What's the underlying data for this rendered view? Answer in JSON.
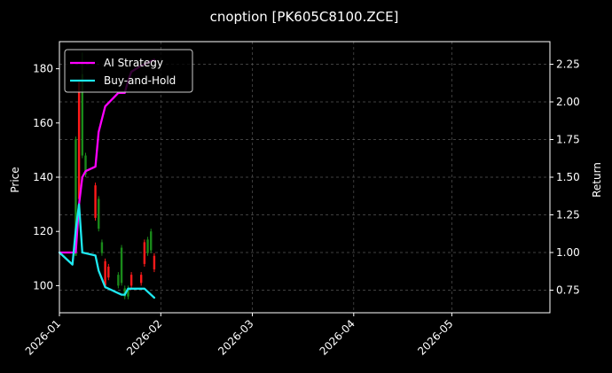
{
  "chart_data": {
    "type": "line",
    "title": "cnoption [PK605C8100.ZCE]",
    "xlabel": "",
    "ylabel": "Price",
    "y2label": "Return",
    "x_ticks": [
      "2026-01",
      "2026-02",
      "2026-03",
      "2026-04",
      "2026-05"
    ],
    "x_range": [
      "2026-01-01",
      "2026-05-31"
    ],
    "ylim": [
      90,
      190
    ],
    "y_ticks": [
      100,
      120,
      140,
      160,
      180
    ],
    "y2lim": [
      0.6,
      2.4
    ],
    "y2_ticks": [
      "0.75",
      "1.00",
      "1.25",
      "1.50",
      "1.75",
      "2.00",
      "2.25"
    ],
    "grid": true,
    "legend_position": "top-left",
    "candles": [
      {
        "date": "2026-01-06",
        "open": 111,
        "close": 154,
        "high": 155,
        "low": 111
      },
      {
        "date": "2026-01-07",
        "open": 175,
        "close": 132,
        "high": 176,
        "low": 130
      },
      {
        "date": "2026-01-08",
        "open": 148,
        "close": 178,
        "high": 186,
        "low": 147
      },
      {
        "date": "2026-01-09",
        "open": 141,
        "close": 148,
        "high": 149,
        "low": 140
      },
      {
        "date": "2026-01-12",
        "open": 137,
        "close": 125,
        "high": 138,
        "low": 124
      },
      {
        "date": "2026-01-13",
        "open": 121,
        "close": 132,
        "high": 133,
        "low": 120
      },
      {
        "date": "2026-01-14",
        "open": 112,
        "close": 116,
        "high": 117,
        "low": 111
      },
      {
        "date": "2026-01-15",
        "open": 109,
        "close": 100,
        "high": 110,
        "low": 99
      },
      {
        "date": "2026-01-16",
        "open": 107,
        "close": 103,
        "high": 108,
        "low": 102
      },
      {
        "date": "2026-01-19",
        "open": 100,
        "close": 104,
        "high": 105,
        "low": 99
      },
      {
        "date": "2026-01-20",
        "open": 101,
        "close": 114,
        "high": 115,
        "low": 100
      },
      {
        "date": "2026-01-21",
        "open": 96,
        "close": 99,
        "high": 100,
        "low": 95
      },
      {
        "date": "2026-01-22",
        "open": 96,
        "close": 99,
        "high": 100,
        "low": 95
      },
      {
        "date": "2026-01-23",
        "open": 104,
        "close": 100,
        "high": 105,
        "low": 99
      },
      {
        "date": "2026-01-26",
        "open": 104,
        "close": 101,
        "high": 105,
        "low": 100
      },
      {
        "date": "2026-01-27",
        "open": 116,
        "close": 108,
        "high": 117,
        "low": 107
      },
      {
        "date": "2026-01-28",
        "open": 112,
        "close": 117,
        "high": 118,
        "low": 111
      },
      {
        "date": "2026-01-29",
        "open": 113,
        "close": 120,
        "high": 121,
        "low": 112
      },
      {
        "date": "2026-01-30",
        "open": 111,
        "close": 106,
        "high": 112,
        "low": 105
      }
    ],
    "series": [
      {
        "name": "AI Strategy",
        "color": "#ff00ff",
        "axis": "right",
        "points": [
          [
            "2026-01-01",
            1.0
          ],
          [
            "2026-01-06",
            1.0
          ],
          [
            "2026-01-07",
            1.32
          ],
          [
            "2026-01-08",
            1.5
          ],
          [
            "2026-01-09",
            1.54
          ],
          [
            "2026-01-12",
            1.57
          ],
          [
            "2026-01-13",
            1.8
          ],
          [
            "2026-01-15",
            1.97
          ],
          [
            "2026-01-19",
            2.06
          ],
          [
            "2026-01-20",
            2.06
          ],
          [
            "2026-01-21",
            2.06
          ],
          [
            "2026-01-22",
            2.14
          ],
          [
            "2026-01-23",
            2.2
          ],
          [
            "2026-01-26",
            2.24
          ],
          [
            "2026-01-30",
            2.28
          ]
        ]
      },
      {
        "name": "Buy-and-Hold",
        "color": "#1ee8f0",
        "axis": "right",
        "points": [
          [
            "2026-01-01",
            1.0
          ],
          [
            "2026-01-05",
            0.92
          ],
          [
            "2026-01-06",
            1.15
          ],
          [
            "2026-01-07",
            1.32
          ],
          [
            "2026-01-08",
            1.0
          ],
          [
            "2026-01-12",
            0.98
          ],
          [
            "2026-01-13",
            0.88
          ],
          [
            "2026-01-15",
            0.77
          ],
          [
            "2026-01-19",
            0.73
          ],
          [
            "2026-01-20",
            0.72
          ],
          [
            "2026-01-21",
            0.72
          ],
          [
            "2026-01-22",
            0.76
          ],
          [
            "2026-01-23",
            0.76
          ],
          [
            "2026-01-27",
            0.76
          ],
          [
            "2026-01-28",
            0.74
          ],
          [
            "2026-01-30",
            0.7
          ]
        ]
      }
    ],
    "colors": {
      "up": "#1a8a1a",
      "down": "#ff1a1a",
      "grid": "#555555",
      "frame": "#ffffff"
    }
  }
}
